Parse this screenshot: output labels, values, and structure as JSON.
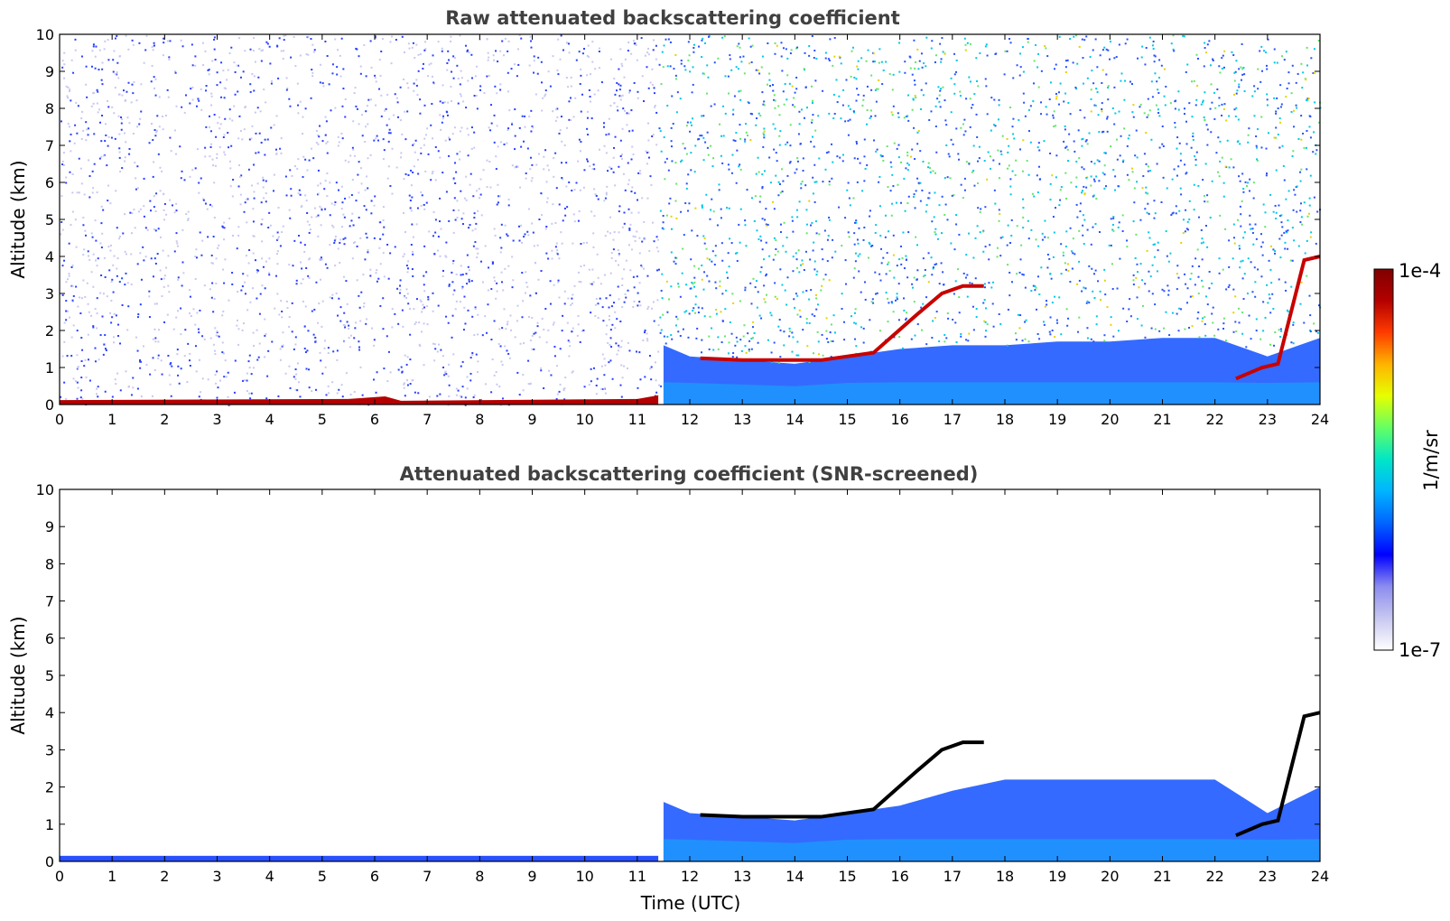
{
  "chart_data": [
    {
      "type": "heatmap",
      "title": "Raw attenuated backscattering coefficient",
      "xlabel": "",
      "ylabel": "Altitude (km)",
      "xlim": [
        0,
        24
      ],
      "ylim": [
        0,
        10
      ],
      "x_ticks": [
        0,
        1,
        2,
        3,
        4,
        5,
        6,
        7,
        8,
        9,
        10,
        11,
        12,
        13,
        14,
        15,
        16,
        17,
        18,
        19,
        20,
        21,
        22,
        23,
        24
      ],
      "y_ticks": [
        0,
        1,
        2,
        3,
        4,
        5,
        6,
        7,
        8,
        9,
        10
      ],
      "features": {
        "surface_layer_top_km": [
          {
            "t": 0,
            "z": 0.12
          },
          {
            "t": 5.5,
            "z": 0.15
          },
          {
            "t": 6.2,
            "z": 0.22
          },
          {
            "t": 6.5,
            "z": 0.1
          },
          {
            "t": 11.0,
            "z": 0.15
          },
          {
            "t": 11.4,
            "z": 0.25
          }
        ],
        "boundary_layer_top_km": [
          {
            "t": 11.5,
            "z": 1.6
          },
          {
            "t": 12.0,
            "z": 1.3
          },
          {
            "t": 13.0,
            "z": 1.2
          },
          {
            "t": 14.0,
            "z": 1.1
          },
          {
            "t": 15.0,
            "z": 1.3
          },
          {
            "t": 16.0,
            "z": 1.5
          },
          {
            "t": 17.0,
            "z": 1.6
          },
          {
            "t": 18.0,
            "z": 1.6
          },
          {
            "t": 19.0,
            "z": 1.7
          },
          {
            "t": 20.0,
            "z": 1.7
          },
          {
            "t": 21.0,
            "z": 1.8
          },
          {
            "t": 22.0,
            "z": 1.8
          },
          {
            "t": 23.0,
            "z": 1.3
          },
          {
            "t": 24.0,
            "z": 1.8
          }
        ],
        "cloud_layer_km": [
          {
            "t": 12.2,
            "z": 1.25
          },
          {
            "t": 13.0,
            "z": 1.2
          },
          {
            "t": 14.5,
            "z": 1.2
          },
          {
            "t": 15.5,
            "z": 1.4
          },
          {
            "t": 16.3,
            "z": 2.4
          },
          {
            "t": 16.8,
            "z": 3.0
          },
          {
            "t": 17.2,
            "z": 3.2
          },
          {
            "t": 17.6,
            "z": 3.2
          },
          {
            "t": 22.4,
            "z": 0.7
          },
          {
            "t": 22.9,
            "z": 1.0
          },
          {
            "t": 23.2,
            "z": 1.1
          },
          {
            "t": 23.7,
            "z": 3.9
          },
          {
            "t": 24.0,
            "z": 4.0
          }
        ],
        "noise_increase_after_utc": 11.4
      }
    },
    {
      "type": "heatmap",
      "title": "Attenuated backscattering coefficient (SNR-screened)",
      "xlabel": "Time (UTC)",
      "ylabel": "Altitude (km)",
      "xlim": [
        0,
        24
      ],
      "ylim": [
        0,
        10
      ],
      "x_ticks": [
        0,
        1,
        2,
        3,
        4,
        5,
        6,
        7,
        8,
        9,
        10,
        11,
        12,
        13,
        14,
        15,
        16,
        17,
        18,
        19,
        20,
        21,
        22,
        23,
        24
      ],
      "y_ticks": [
        0,
        1,
        2,
        3,
        4,
        5,
        6,
        7,
        8,
        9,
        10
      ],
      "features": {
        "boundary_layer_top_km": [
          {
            "t": 11.5,
            "z": 1.6
          },
          {
            "t": 12.0,
            "z": 1.3
          },
          {
            "t": 13.0,
            "z": 1.2
          },
          {
            "t": 14.0,
            "z": 1.1
          },
          {
            "t": 15.0,
            "z": 1.3
          },
          {
            "t": 16.0,
            "z": 1.5
          },
          {
            "t": 17.0,
            "z": 1.9
          },
          {
            "t": 18.0,
            "z": 2.2
          },
          {
            "t": 19.0,
            "z": 2.2
          },
          {
            "t": 20.0,
            "z": 2.2
          },
          {
            "t": 21.0,
            "z": 2.2
          },
          {
            "t": 22.0,
            "z": 2.2
          },
          {
            "t": 23.0,
            "z": 1.3
          },
          {
            "t": 24.0,
            "z": 2.0
          }
        ]
      }
    }
  ],
  "colorbar": {
    "max_label": "1e-4",
    "min_label": "1e-7",
    "unit_label": "1/m/sr",
    "scale": "log",
    "colors": [
      "#ffffff",
      "#c8c8f0",
      "#8c8cf0",
      "#0000ff",
      "#0064ff",
      "#00b4ff",
      "#00e6c8",
      "#64ff64",
      "#e6ff00",
      "#ffb400",
      "#ff3c00",
      "#b40000",
      "#800000"
    ]
  }
}
